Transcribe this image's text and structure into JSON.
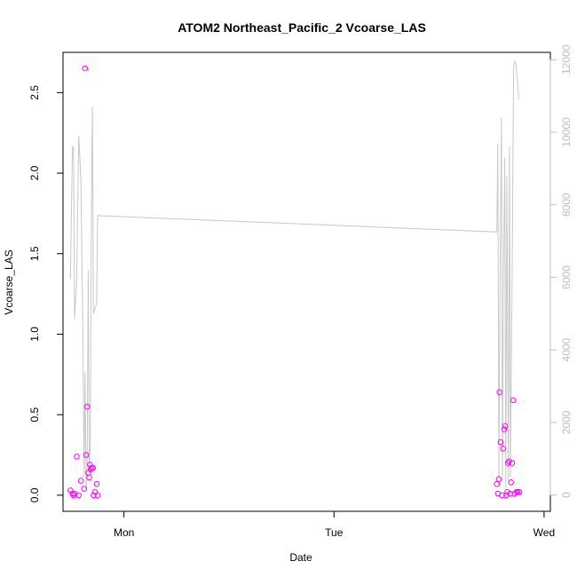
{
  "chart_data": {
    "type": "scatter",
    "title": "ATOM2 Northeast_Pacific_2 Vcoarse_LAS",
    "xlabel": "Date",
    "ylabel": "Vcoarse_LAS",
    "x_ticks": [
      {
        "x": 0.0,
        "label": "Mon"
      },
      {
        "x": 1.0,
        "label": "Tue"
      },
      {
        "x": 2.0,
        "label": "Wed"
      }
    ],
    "xlim": [
      -0.29,
      2.03
    ],
    "ylim": [
      -0.1,
      2.75
    ],
    "y_ticks": [
      0.0,
      0.5,
      1.0,
      1.5,
      2.0,
      2.5
    ],
    "y_tick_labels": [
      "0.0",
      "0.5",
      "1.0",
      "1.5",
      "2.0",
      "2.5"
    ],
    "y2_ticks": [
      0,
      2000,
      4000,
      6000,
      8000,
      10000,
      12000
    ],
    "y2_tick_labels": [
      "0",
      "2000",
      "4000",
      "6000",
      "8000",
      "10000",
      "12000"
    ],
    "y2lim": [
      -450,
      12200
    ],
    "grid": false,
    "colors": {
      "points": "#ff00ff",
      "line": "#c8c8c8",
      "right_axis": "#bdbdbd"
    },
    "series": [
      {
        "type": "scatter",
        "axis": "left",
        "points": [
          {
            "x": -0.255,
            "y": 0.03
          },
          {
            "x": -0.245,
            "y": 0.01
          },
          {
            "x": -0.24,
            "y": 0.0
          },
          {
            "x": -0.235,
            "y": 0.01
          },
          {
            "x": -0.225,
            "y": 0.24
          },
          {
            "x": -0.215,
            "y": 0.0
          },
          {
            "x": -0.205,
            "y": 0.09
          },
          {
            "x": -0.19,
            "y": 0.04
          },
          {
            "x": -0.185,
            "y": 2.65
          },
          {
            "x": -0.18,
            "y": 0.25
          },
          {
            "x": -0.175,
            "y": 0.55
          },
          {
            "x": -0.17,
            "y": 0.14
          },
          {
            "x": -0.165,
            "y": 0.11
          },
          {
            "x": -0.162,
            "y": 0.19
          },
          {
            "x": -0.158,
            "y": 0.16
          },
          {
            "x": -0.153,
            "y": 0.17
          },
          {
            "x": -0.148,
            "y": 0.17
          },
          {
            "x": -0.145,
            "y": 0.0
          },
          {
            "x": -0.138,
            "y": 0.02
          },
          {
            "x": -0.13,
            "y": 0.07
          },
          {
            "x": -0.125,
            "y": 0.0
          },
          {
            "x": 1.775,
            "y": 0.07
          },
          {
            "x": 1.78,
            "y": 0.01
          },
          {
            "x": 1.785,
            "y": 0.1
          },
          {
            "x": 1.788,
            "y": 0.64
          },
          {
            "x": 1.793,
            "y": 0.33
          },
          {
            "x": 1.8,
            "y": 0.0
          },
          {
            "x": 1.805,
            "y": 0.29
          },
          {
            "x": 1.81,
            "y": 0.41
          },
          {
            "x": 1.815,
            "y": 0.43
          },
          {
            "x": 1.82,
            "y": 0.0
          },
          {
            "x": 1.825,
            "y": 0.02
          },
          {
            "x": 1.828,
            "y": 0.2
          },
          {
            "x": 1.833,
            "y": 0.21
          },
          {
            "x": 1.838,
            "y": 0.01
          },
          {
            "x": 1.843,
            "y": 0.08
          },
          {
            "x": 1.848,
            "y": 0.2
          },
          {
            "x": 1.853,
            "y": 0.59
          },
          {
            "x": 1.86,
            "y": 0.01
          },
          {
            "x": 1.868,
            "y": 0.02
          },
          {
            "x": 1.875,
            "y": 0.02
          },
          {
            "x": 1.882,
            "y": 0.02
          }
        ]
      },
      {
        "type": "line",
        "axis": "right",
        "points": [
          {
            "x": -0.255,
            "y": 5950
          },
          {
            "x": -0.245,
            "y": 9600
          },
          {
            "x": -0.24,
            "y": 9600
          },
          {
            "x": -0.235,
            "y": 4850
          },
          {
            "x": -0.225,
            "y": 5900
          },
          {
            "x": -0.215,
            "y": 9900
          },
          {
            "x": -0.205,
            "y": 8700
          },
          {
            "x": -0.195,
            "y": 4200
          },
          {
            "x": -0.19,
            "y": 500
          },
          {
            "x": -0.185,
            "y": 3400
          },
          {
            "x": -0.18,
            "y": 150
          },
          {
            "x": -0.175,
            "y": 800
          },
          {
            "x": -0.17,
            "y": 6200
          },
          {
            "x": -0.165,
            "y": 600
          },
          {
            "x": -0.16,
            "y": 1500
          },
          {
            "x": -0.155,
            "y": 7600
          },
          {
            "x": -0.15,
            "y": 10700
          },
          {
            "x": -0.145,
            "y": 5000
          },
          {
            "x": -0.14,
            "y": 5100
          },
          {
            "x": -0.135,
            "y": 5200
          },
          {
            "x": -0.13,
            "y": 5300
          },
          {
            "x": -0.125,
            "y": 7700
          },
          {
            "x": 1.775,
            "y": 7250
          },
          {
            "x": 1.78,
            "y": 9700
          },
          {
            "x": 1.785,
            "y": 400
          },
          {
            "x": 1.79,
            "y": 5800
          },
          {
            "x": 1.797,
            "y": 10400
          },
          {
            "x": 1.802,
            "y": 500
          },
          {
            "x": 1.807,
            "y": 6000
          },
          {
            "x": 1.813,
            "y": 9300
          },
          {
            "x": 1.818,
            "y": 200
          },
          {
            "x": 1.823,
            "y": 8800
          },
          {
            "x": 1.83,
            "y": 400
          },
          {
            "x": 1.835,
            "y": 9600
          },
          {
            "x": 1.84,
            "y": 500
          },
          {
            "x": 1.848,
            "y": 6000
          },
          {
            "x": 1.855,
            "y": 11800
          },
          {
            "x": 1.86,
            "y": 11950
          },
          {
            "x": 1.865,
            "y": 11900
          },
          {
            "x": 1.872,
            "y": 11500
          },
          {
            "x": 1.88,
            "y": 10900
          }
        ]
      }
    ]
  }
}
